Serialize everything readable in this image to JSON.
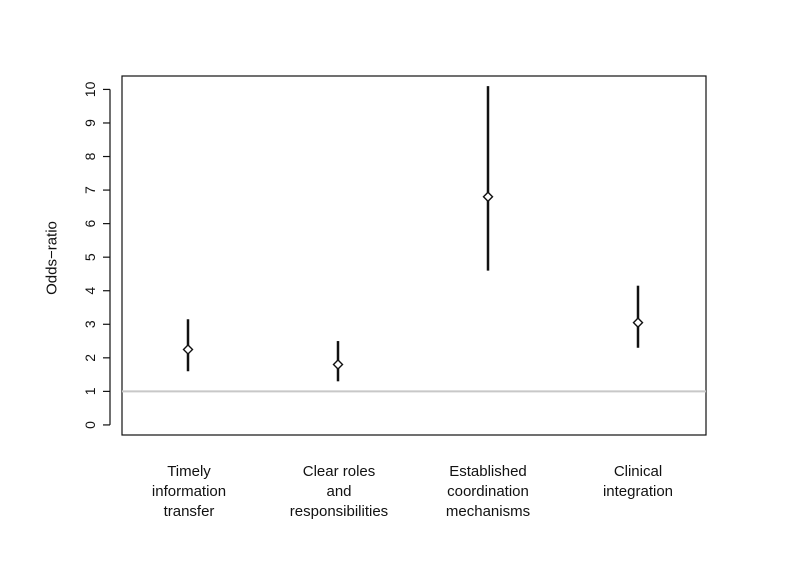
{
  "chart_data": {
    "type": "scatter",
    "title": "",
    "xlabel": "",
    "ylabel": "Odds−ratio",
    "ylim": [
      -0.3,
      10.4
    ],
    "yticks": [
      0,
      1,
      2,
      3,
      4,
      5,
      6,
      7,
      8,
      9,
      10
    ],
    "reference_line": {
      "y": 1,
      "color": "#c8c8c8"
    },
    "grid": false,
    "categories": [
      "Timely\ninformation\ntransfer",
      "Clear roles\nand\nresponsibilities",
      "Established\ncoordination\nmechanisms",
      "Clinical\nintegration"
    ],
    "series": [
      {
        "estimate": [
          2.25,
          1.8,
          6.8,
          3.05
        ],
        "lower": [
          1.6,
          1.3,
          4.6,
          2.3
        ],
        "upper": [
          3.15,
          2.5,
          10.1,
          4.15
        ]
      }
    ]
  }
}
